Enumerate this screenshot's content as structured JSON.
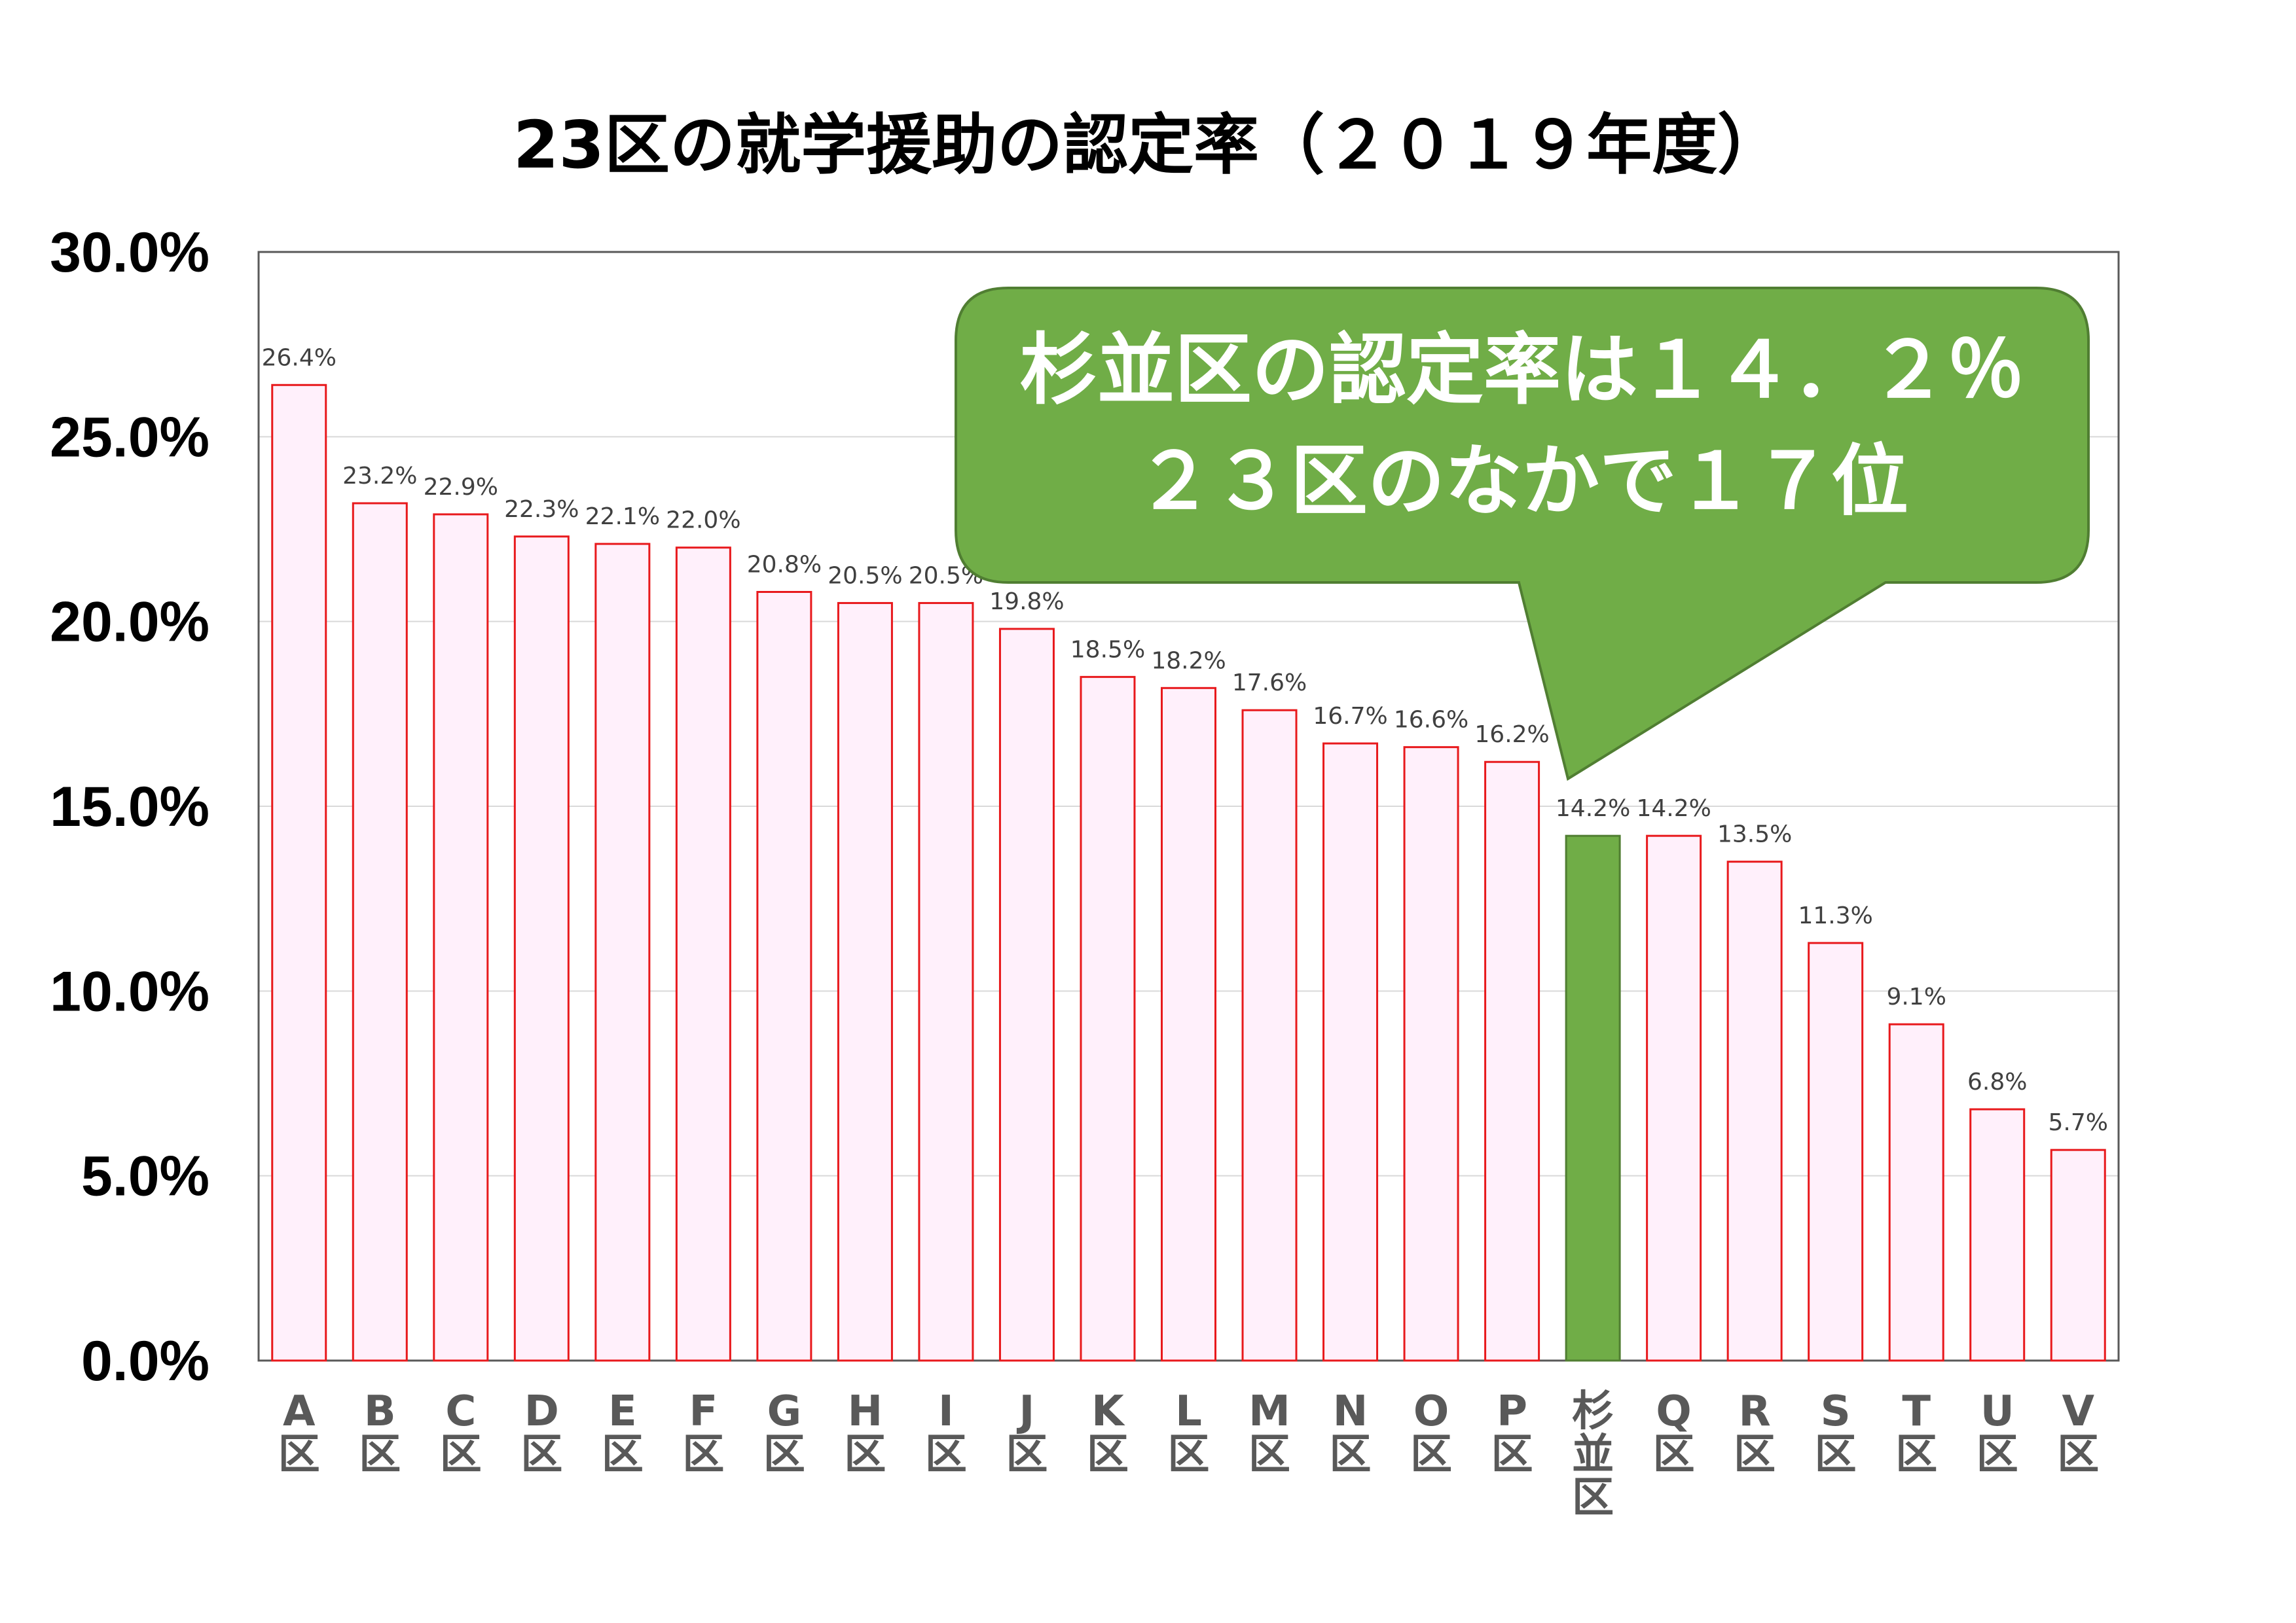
{
  "chart_data": {
    "type": "bar",
    "title": "23区の就学援助の認定率（２０１９年度）",
    "categories": [
      "A区",
      "B区",
      "C区",
      "D区",
      "E区",
      "F区",
      "G区",
      "H区",
      "I区",
      "J区",
      "K区",
      "L区",
      "M区",
      "N区",
      "O区",
      "P区",
      "杉並区",
      "Q区",
      "R区",
      "S区",
      "T区",
      "U区",
      "V区"
    ],
    "values": [
      26.4,
      23.2,
      22.9,
      22.3,
      22.1,
      22.0,
      20.8,
      20.5,
      20.5,
      19.8,
      18.5,
      18.2,
      17.6,
      16.7,
      16.6,
      16.2,
      14.2,
      14.2,
      13.5,
      11.3,
      9.1,
      6.8,
      5.7
    ],
    "data_labels": [
      "26.4%",
      "23.2%",
      "22.9%",
      "22.3%",
      "22.1%",
      "22.0%",
      "20.8%",
      "20.5%",
      "20.5%",
      "19.8%",
      "18.5%",
      "18.2%",
      "17.6%",
      "16.7%",
      "16.6%",
      "16.2%",
      "14.2%",
      "14.2%",
      "13.5%",
      "11.3%",
      "9.1%",
      "6.8%",
      "5.7%"
    ],
    "highlight_category": "杉並区",
    "ylim": [
      0,
      30
    ],
    "yticks": [
      "0.0%",
      "5.0%",
      "10.0%",
      "15.0%",
      "20.0%",
      "25.0%",
      "30.0%"
    ],
    "xlabel": "",
    "ylabel": "",
    "grid": true,
    "colors": {
      "bar_fill": "#fff0fb",
      "bar_stroke": "#e8191c",
      "highlight_fill": "#70ad47",
      "highlight_stroke": "#507e32",
      "grid": "#d9d9d9",
      "frame": "#595959"
    }
  },
  "callout": {
    "line1": "杉並区の認定率は１４．２％",
    "line2": "２３区のなかで１７位",
    "fill": "#70ad47",
    "stroke": "#507e32"
  }
}
